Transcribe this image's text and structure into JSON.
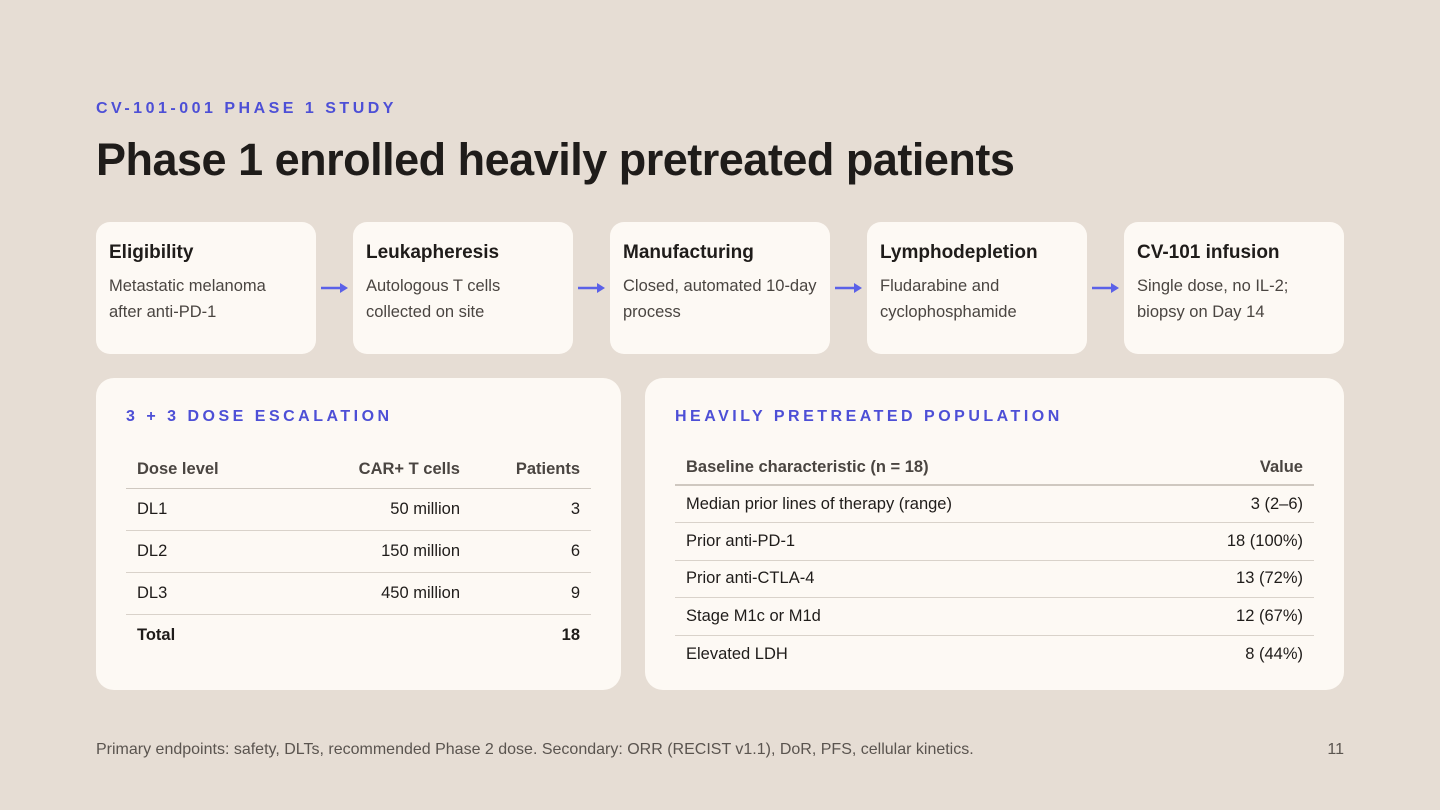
{
  "header": {
    "eyebrow": "CV-101-001 PHASE 1 STUDY",
    "title": "Phase 1 enrolled heavily pretreated patients"
  },
  "flow": {
    "accent_color": "#5b61e8",
    "steps": [
      {
        "title": "Eligibility",
        "desc": "Metastatic melanoma after anti-PD-1"
      },
      {
        "title": "Leukapheresis",
        "desc": "Autologous T cells collected on site"
      },
      {
        "title": "Manufacturing",
        "desc": "Closed, automated 10-day process"
      },
      {
        "title": "Lymphodepletion",
        "desc": "Fludarabine and cyclophosphamide"
      },
      {
        "title": "CV-101 infusion",
        "desc": "Single dose, no IL-2; biopsy on Day 14"
      }
    ]
  },
  "dose_escalation": {
    "heading": "3 + 3 DOSE ESCALATION",
    "columns": [
      "Dose level",
      "CAR+ T cells",
      "Patients"
    ],
    "rows": [
      [
        "DL1",
        "50 million",
        "3"
      ],
      [
        "DL2",
        "150 million",
        "6"
      ],
      [
        "DL3",
        "450 million",
        "9"
      ]
    ],
    "total": {
      "label": "Total",
      "value": "18"
    }
  },
  "population": {
    "heading": "HEAVILY PRETREATED POPULATION",
    "columns": [
      "Baseline characteristic (n = 18)",
      "Value"
    ],
    "rows": [
      [
        "Median prior lines of therapy (range)",
        "3 (2–6)"
      ],
      [
        "Prior anti-PD-1",
        "18 (100%)"
      ],
      [
        "Prior anti-CTLA-4",
        "13 (72%)"
      ],
      [
        "Stage M1c or M1d",
        "12 (67%)"
      ],
      [
        "Elevated LDH",
        "8 (44%)"
      ]
    ]
  },
  "footer": {
    "note": "Primary endpoints: safety, DLTs, recommended Phase 2 dose. Secondary: ORR (RECIST v1.1), DoR, PFS, cellular kinetics.",
    "page_number": "11"
  }
}
